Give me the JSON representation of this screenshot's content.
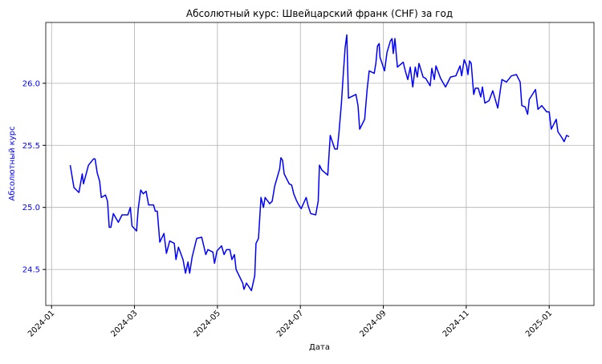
{
  "chart_data": {
    "type": "line",
    "title": "Абсолютный курс: Швейцарский франк (CHF) за год",
    "xlabel": "Дата",
    "ylabel": "Абсолютный курс",
    "color": "#0000ff",
    "grid": true,
    "xlim": [
      -0.14,
      13.08
    ],
    "ylim": [
      24.21,
      26.49
    ],
    "xticks": [
      {
        "value": 0,
        "label": "2024-01"
      },
      {
        "value": 2,
        "label": "2024-03"
      },
      {
        "value": 4,
        "label": "2024-05"
      },
      {
        "value": 6,
        "label": "2024-07"
      },
      {
        "value": 8,
        "label": "2024-09"
      },
      {
        "value": 10,
        "label": "2024-11"
      },
      {
        "value": 12,
        "label": "2025-01"
      }
    ],
    "yticks": [
      {
        "value": 24.5,
        "label": "24.5"
      },
      {
        "value": 25,
        "label": "25.0"
      },
      25.5,
      {
        "value": 26,
        "label": "26.0"
      }
    ],
    "x": [
      0.45,
      0.54,
      0.66,
      0.74,
      0.77,
      0.89,
      1.01,
      1.05,
      1.1,
      1.16,
      1.2,
      1.3,
      1.35,
      1.39,
      1.43,
      1.49,
      1.61,
      1.7,
      1.84,
      1.9,
      1.94,
      2.05,
      2.09,
      2.15,
      2.21,
      2.28,
      2.34,
      2.46,
      2.5,
      2.55,
      2.61,
      2.71,
      2.77,
      2.85,
      2.96,
      3.0,
      3.06,
      3.17,
      3.23,
      3.29,
      3.33,
      3.39,
      3.5,
      3.62,
      3.72,
      3.77,
      3.89,
      3.93,
      3.99,
      4.1,
      4.16,
      4.22,
      4.3,
      4.35,
      4.41,
      4.45,
      4.61,
      4.64,
      4.7,
      4.82,
      4.9,
      4.93,
      4.99,
      5.05,
      5.11,
      5.15,
      5.26,
      5.32,
      5.38,
      5.5,
      5.53,
      5.57,
      5.61,
      5.73,
      5.79,
      5.84,
      5.9,
      5.96,
      6.02,
      6.14,
      6.19,
      6.25,
      6.37,
      6.43,
      6.46,
      6.52,
      6.66,
      6.72,
      6.77,
      6.83,
      6.89,
      6.93,
      6.99,
      7.04,
      7.08,
      7.12,
      7.16,
      7.28,
      7.34,
      7.39,
      7.43,
      7.55,
      7.61,
      7.66,
      7.78,
      7.82,
      7.86,
      7.9,
      7.92,
      8.03,
      8.09,
      8.17,
      8.21,
      8.24,
      8.28,
      8.34,
      8.48,
      8.53,
      8.59,
      8.65,
      8.71,
      8.77,
      8.82,
      8.86,
      8.96,
      9.02,
      9.13,
      9.17,
      9.23,
      9.27,
      9.38,
      9.5,
      9.62,
      9.75,
      9.85,
      9.89,
      9.95,
      10.01,
      10.04,
      10.08,
      10.12,
      10.18,
      10.22,
      10.29,
      10.35,
      10.39,
      10.45,
      10.55,
      10.64,
      10.76,
      10.82,
      10.86,
      10.97,
      11.09,
      11.21,
      11.3,
      11.34,
      11.42,
      11.48,
      11.52,
      11.67,
      11.73,
      11.82,
      11.94,
      12.0,
      12.05,
      12.17,
      12.21,
      12.31,
      12.36,
      12.42,
      12.48
    ],
    "values": [
      25.34,
      25.16,
      25.12,
      25.27,
      25.19,
      25.34,
      25.39,
      25.39,
      25.28,
      25.21,
      25.08,
      25.1,
      25.05,
      24.84,
      24.84,
      24.95,
      24.88,
      24.94,
      24.94,
      25.0,
      24.85,
      24.81,
      24.99,
      25.14,
      25.11,
      25.13,
      25.02,
      25.02,
      24.97,
      24.97,
      24.72,
      24.79,
      24.63,
      24.73,
      24.71,
      24.58,
      24.68,
      24.58,
      24.47,
      24.56,
      24.47,
      24.6,
      24.75,
      24.76,
      24.62,
      24.66,
      24.64,
      24.55,
      24.65,
      24.69,
      24.62,
      24.66,
      24.66,
      24.58,
      24.62,
      24.5,
      24.39,
      24.34,
      24.39,
      24.33,
      24.45,
      24.71,
      24.75,
      25.08,
      25.0,
      25.08,
      25.03,
      25.05,
      25.17,
      25.31,
      25.4,
      25.38,
      25.27,
      25.19,
      25.18,
      25.11,
      25.06,
      25.02,
      24.99,
      25.08,
      25.01,
      24.95,
      24.94,
      25.05,
      25.34,
      25.3,
      25.26,
      25.58,
      25.53,
      25.47,
      25.47,
      25.6,
      25.84,
      26.1,
      26.29,
      26.39,
      25.88,
      25.9,
      25.91,
      25.82,
      25.63,
      25.71,
      25.95,
      26.1,
      26.08,
      26.16,
      26.3,
      26.32,
      26.21,
      26.1,
      26.25,
      26.34,
      26.36,
      26.24,
      26.36,
      26.13,
      26.17,
      26.1,
      26.03,
      26.13,
      25.97,
      26.13,
      26.05,
      26.16,
      26.05,
      26.04,
      25.98,
      26.12,
      26.03,
      26.14,
      26.04,
      25.97,
      26.05,
      26.06,
      26.14,
      26.06,
      26.19,
      26.14,
      26.07,
      26.18,
      26.16,
      25.91,
      25.96,
      25.96,
      25.89,
      25.97,
      25.84,
      25.86,
      25.94,
      25.8,
      25.94,
      26.03,
      26.01,
      26.06,
      26.07,
      26.01,
      25.82,
      25.81,
      25.75,
      25.87,
      25.95,
      25.79,
      25.82,
      25.77,
      25.77,
      25.63,
      25.71,
      25.61,
      25.56,
      25.53,
      25.58,
      25.57
    ]
  }
}
